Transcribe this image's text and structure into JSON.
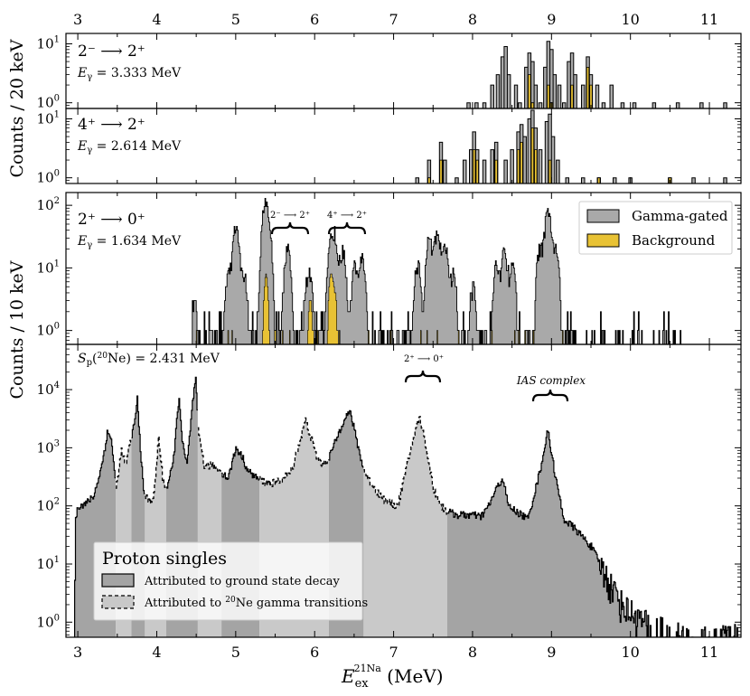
{
  "figure": {
    "xlabel_main": "E",
    "xlabel_sub": "ex",
    "xlabel_sup": "21Na",
    "xlabel_unit": " (MeV)",
    "ylabel_top": "Counts / 20 keV",
    "ylabel_mid": "Counts / 10 keV"
  },
  "colors": {
    "gated": "#a9a9a9",
    "background": "#e8c234",
    "ground": "#a4a4a4",
    "gamma": "#c8c8c8",
    "band_dark": "#a4a4a4",
    "band_light": "#c9c9c9"
  },
  "chart_data": [
    {
      "id": "p1",
      "type": "histogram",
      "yscale": "log",
      "ylim": [
        0.8,
        15
      ],
      "xlim": [
        2.85,
        11.4
      ],
      "xticks": [
        3,
        4,
        5,
        6,
        7,
        8,
        9,
        10,
        11
      ],
      "yticks": [
        {
          "v": 1,
          "label": "10",
          "exp": "0"
        },
        {
          "v": 10,
          "label": "10",
          "exp": "1"
        }
      ],
      "transition": "2⁻ ⟶ 2⁺",
      "egamma_label": "E",
      "egamma_sub": "γ",
      "egamma_value": " = 3.333 MeV",
      "series": [
        {
          "name": "Gamma-gated",
          "bins": [
            [
              7.95,
              1
            ],
            [
              8.05,
              1
            ],
            [
              8.15,
              1
            ],
            [
              8.25,
              2
            ],
            [
              8.32,
              3
            ],
            [
              8.38,
              6
            ],
            [
              8.42,
              9
            ],
            [
              8.46,
              3
            ],
            [
              8.55,
              2
            ],
            [
              8.6,
              1
            ],
            [
              8.68,
              4
            ],
            [
              8.72,
              7
            ],
            [
              8.76,
              5
            ],
            [
              8.8,
              2
            ],
            [
              8.86,
              1
            ],
            [
              8.92,
              4
            ],
            [
              8.96,
              11
            ],
            [
              9.0,
              8
            ],
            [
              9.04,
              3
            ],
            [
              9.1,
              2
            ],
            [
              9.16,
              1
            ],
            [
              9.22,
              5
            ],
            [
              9.26,
              7
            ],
            [
              9.3,
              3
            ],
            [
              9.4,
              2
            ],
            [
              9.46,
              6
            ],
            [
              9.5,
              3
            ],
            [
              9.58,
              2
            ],
            [
              9.66,
              1
            ],
            [
              9.76,
              2
            ],
            [
              9.9,
              1
            ],
            [
              10.05,
              1
            ],
            [
              10.3,
              1
            ],
            [
              10.6,
              1
            ],
            [
              10.9,
              1
            ],
            [
              11.2,
              1
            ]
          ]
        },
        {
          "name": "Background",
          "bins": [
            [
              8.72,
              3
            ],
            [
              8.76,
              1
            ],
            [
              8.96,
              2
            ],
            [
              9.0,
              1
            ],
            [
              9.26,
              2
            ],
            [
              9.46,
              4
            ],
            [
              9.5,
              2
            ]
          ]
        }
      ]
    },
    {
      "id": "p2",
      "type": "histogram",
      "yscale": "log",
      "ylim": [
        0.8,
        15
      ],
      "xlim": [
        2.85,
        11.4
      ],
      "yticks": [
        {
          "v": 1,
          "label": "10",
          "exp": "0"
        },
        {
          "v": 10,
          "label": "10",
          "exp": "1"
        }
      ],
      "transition": "4⁺ ⟶ 2⁺",
      "egamma_label": "E",
      "egamma_sub": "γ",
      "egamma_value": " = 2.614 MeV",
      "series": [
        {
          "name": "Gamma-gated",
          "bins": [
            [
              7.3,
              1
            ],
            [
              7.45,
              2
            ],
            [
              7.6,
              4
            ],
            [
              7.65,
              2
            ],
            [
              7.8,
              1
            ],
            [
              7.9,
              2
            ],
            [
              7.98,
              3
            ],
            [
              8.02,
              6
            ],
            [
              8.06,
              3
            ],
            [
              8.15,
              2
            ],
            [
              8.25,
              3
            ],
            [
              8.3,
              4
            ],
            [
              8.42,
              2
            ],
            [
              8.5,
              3
            ],
            [
              8.58,
              6
            ],
            [
              8.62,
              8
            ],
            [
              8.66,
              5
            ],
            [
              8.72,
              10
            ],
            [
              8.76,
              14
            ],
            [
              8.8,
              7
            ],
            [
              8.86,
              3
            ],
            [
              8.94,
              9
            ],
            [
              8.98,
              12
            ],
            [
              9.02,
              5
            ],
            [
              9.08,
              2
            ],
            [
              9.2,
              1
            ],
            [
              9.4,
              1
            ],
            [
              9.6,
              1
            ],
            [
              9.8,
              1
            ],
            [
              10.0,
              1
            ],
            [
              10.5,
              1
            ],
            [
              10.8,
              1
            ],
            [
              11.2,
              1
            ]
          ]
        },
        {
          "name": "Background",
          "bins": [
            [
              7.45,
              1
            ],
            [
              7.6,
              2
            ],
            [
              8.02,
              3
            ],
            [
              8.06,
              2
            ],
            [
              8.3,
              2
            ],
            [
              8.58,
              3
            ],
            [
              8.62,
              4
            ],
            [
              8.76,
              7
            ],
            [
              8.8,
              3
            ],
            [
              8.98,
              2
            ],
            [
              9.6,
              1
            ],
            [
              10.5,
              1
            ]
          ]
        }
      ]
    },
    {
      "id": "p3",
      "type": "histogram",
      "yscale": "log",
      "ylim": [
        0.6,
        160
      ],
      "xlim": [
        2.85,
        11.4
      ],
      "yticks": [
        {
          "v": 1,
          "label": "10",
          "exp": "0"
        },
        {
          "v": 10,
          "label": "10",
          "exp": "1"
        },
        {
          "v": 100,
          "label": "10",
          "exp": "2"
        }
      ],
      "transition": "2⁺ ⟶ 0⁺",
      "egamma_label": "E",
      "egamma_sub": "γ",
      "egamma_value": " = 1.634 MeV",
      "legend": [
        "Gamma-gated",
        "Background"
      ],
      "annotations": [
        {
          "text": "2⁻ ⟶ 2⁺",
          "x": 5.72,
          "y": 130,
          "brace_x": [
            5.5,
            5.95
          ]
        },
        {
          "text": "4⁺ ⟶ 2⁺",
          "x": 6.42,
          "y": 130,
          "brace_x": [
            6.2,
            6.65
          ]
        }
      ],
      "peaks": [
        [
          4.47,
          3
        ],
        [
          4.9,
          8
        ],
        [
          5.0,
          45
        ],
        [
          5.1,
          8
        ],
        [
          5.35,
          25
        ],
        [
          5.38,
          95
        ],
        [
          5.42,
          20
        ],
        [
          5.65,
          20
        ],
        [
          5.9,
          4
        ],
        [
          5.94,
          6
        ],
        [
          6.2,
          20
        ],
        [
          6.25,
          30
        ],
        [
          6.35,
          18
        ],
        [
          6.5,
          10
        ],
        [
          6.6,
          14
        ],
        [
          7.3,
          12
        ],
        [
          7.45,
          30
        ],
        [
          7.55,
          35
        ],
        [
          7.65,
          20
        ],
        [
          7.75,
          8
        ],
        [
          8.0,
          5
        ],
        [
          8.3,
          12
        ],
        [
          8.4,
          18
        ],
        [
          8.5,
          10
        ],
        [
          8.85,
          20
        ],
        [
          8.95,
          85
        ],
        [
          9.05,
          20
        ]
      ],
      "bg_peaks": [
        [
          5.38,
          8
        ],
        [
          5.94,
          3
        ],
        [
          6.2,
          8
        ],
        [
          6.25,
          4
        ]
      ]
    },
    {
      "id": "p4",
      "type": "histogram",
      "yscale": "log",
      "ylim": [
        0.55,
        60000
      ],
      "xlim": [
        2.85,
        11.4
      ],
      "yticks": [
        {
          "v": 1,
          "label": "10",
          "exp": "0"
        },
        {
          "v": 10,
          "label": "10",
          "exp": "1"
        },
        {
          "v": 100,
          "label": "10",
          "exp": "2"
        },
        {
          "v": 1000,
          "label": "10",
          "exp": "3"
        },
        {
          "v": 10000,
          "label": "10",
          "exp": "4"
        }
      ],
      "sp_label": "S",
      "sp_sub": "p",
      "sp_sup": "20",
      "sp_rest": "Ne) = 2.431 MeV",
      "sp_open": "(",
      "annotations": [
        {
          "text": "2⁺ ⟶ 0⁺",
          "x": 7.4,
          "y": 30000,
          "brace_x": [
            7.18,
            7.62
          ]
        },
        {
          "text": "IAS complex",
          "x": 9.02,
          "y": 15000,
          "brace_x": [
            8.82,
            9.25
          ]
        }
      ],
      "legend_title": "Proton singles",
      "legend_ground": "Attributed to ground state decay",
      "legend_gamma_pre": "Attributed to ",
      "legend_gamma_sup": "20",
      "legend_gamma_post": "Ne gamma transitions",
      "bands": [
        [
          2.95,
          3.48,
          "dark"
        ],
        [
          3.48,
          3.68,
          "light"
        ],
        [
          3.68,
          3.85,
          "dark"
        ],
        [
          3.85,
          4.12,
          "light"
        ],
        [
          4.12,
          4.52,
          "dark"
        ],
        [
          4.52,
          4.82,
          "light"
        ],
        [
          4.82,
          5.3,
          "dark"
        ],
        [
          5.3,
          6.18,
          "light"
        ],
        [
          6.18,
          6.62,
          "dark"
        ],
        [
          6.62,
          7.68,
          "light"
        ],
        [
          7.68,
          11.4,
          "dark"
        ]
      ],
      "anchors": [
        [
          2.95,
          0.55
        ],
        [
          2.97,
          60
        ],
        [
          3.0,
          100
        ],
        [
          3.1,
          110
        ],
        [
          3.2,
          150
        ],
        [
          3.3,
          500
        ],
        [
          3.37,
          1800
        ],
        [
          3.42,
          1500
        ],
        [
          3.48,
          200
        ],
        [
          3.55,
          900
        ],
        [
          3.6,
          500
        ],
        [
          3.66,
          1200
        ],
        [
          3.72,
          3000
        ],
        [
          3.75,
          7000
        ],
        [
          3.79,
          1000
        ],
        [
          3.83,
          170
        ],
        [
          3.9,
          120
        ],
        [
          3.96,
          150
        ],
        [
          4.02,
          1500
        ],
        [
          4.07,
          300
        ],
        [
          4.12,
          200
        ],
        [
          4.2,
          500
        ],
        [
          4.28,
          8000
        ],
        [
          4.32,
          1200
        ],
        [
          4.38,
          500
        ],
        [
          4.45,
          6000
        ],
        [
          4.49,
          15000
        ],
        [
          4.52,
          2000
        ],
        [
          4.6,
          500
        ],
        [
          4.7,
          500
        ],
        [
          4.8,
          400
        ],
        [
          4.9,
          300
        ],
        [
          5.0,
          1000
        ],
        [
          5.08,
          700
        ],
        [
          5.15,
          400
        ],
        [
          5.3,
          280
        ],
        [
          5.4,
          250
        ],
        [
          5.5,
          250
        ],
        [
          5.6,
          300
        ],
        [
          5.7,
          400
        ],
        [
          5.8,
          1200
        ],
        [
          5.88,
          3000
        ],
        [
          5.95,
          1500
        ],
        [
          6.02,
          700
        ],
        [
          6.1,
          500
        ],
        [
          6.18,
          700
        ],
        [
          6.28,
          1500
        ],
        [
          6.38,
          3500
        ],
        [
          6.45,
          4000
        ],
        [
          6.55,
          1000
        ],
        [
          6.62,
          400
        ],
        [
          6.75,
          200
        ],
        [
          6.9,
          120
        ],
        [
          7.05,
          100
        ],
        [
          7.15,
          400
        ],
        [
          7.25,
          1500
        ],
        [
          7.32,
          3500
        ],
        [
          7.4,
          1200
        ],
        [
          7.5,
          200
        ],
        [
          7.6,
          100
        ],
        [
          7.68,
          80
        ],
        [
          7.8,
          70
        ],
        [
          8.0,
          70
        ],
        [
          8.1,
          65
        ],
        [
          8.2,
          100
        ],
        [
          8.3,
          200
        ],
        [
          8.38,
          300
        ],
        [
          8.45,
          100
        ],
        [
          8.55,
          80
        ],
        [
          8.7,
          60
        ],
        [
          8.85,
          400
        ],
        [
          8.95,
          2000
        ],
        [
          9.05,
          300
        ],
        [
          9.15,
          60
        ],
        [
          9.3,
          40
        ],
        [
          9.5,
          20
        ],
        [
          9.7,
          6
        ],
        [
          9.9,
          2
        ],
        [
          10.1,
          1.2
        ],
        [
          10.3,
          0.8
        ],
        [
          10.6,
          0.7
        ],
        [
          11.0,
          0.6
        ],
        [
          11.4,
          0.6
        ]
      ]
    }
  ]
}
